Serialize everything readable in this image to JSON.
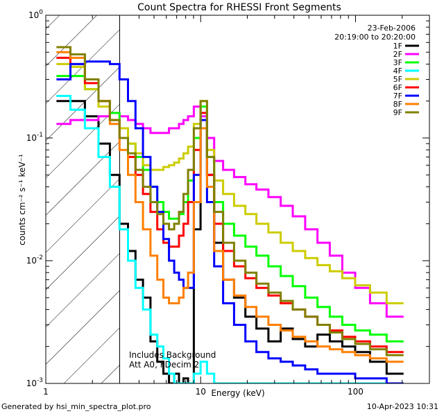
{
  "chart_data": {
    "type": "line",
    "title": "Count Spectra for RHESSI Front Segments",
    "xlabel": "Energy (keV)",
    "ylabel": "counts cm⁻² s⁻¹ keV⁻¹",
    "xscale": "log",
    "yscale": "log",
    "xlim": [
      1,
      300
    ],
    "ylim": [
      0.001,
      1
    ],
    "x_ticks": [
      {
        "value": 1,
        "label": "1"
      },
      {
        "value": 10,
        "label": "10"
      },
      {
        "value": 100,
        "label": "100"
      }
    ],
    "y_ticks": [
      {
        "value": 0.001,
        "base": "10",
        "exp": "-3"
      },
      {
        "value": 0.01,
        "base": "10",
        "exp": "-2"
      },
      {
        "value": 0.1,
        "base": "10",
        "exp": "-1"
      },
      {
        "value": 1,
        "base": "10",
        "exp": "0"
      }
    ],
    "legend": {
      "position": "top-right",
      "date": "23-Feb-2006",
      "time_range": "20:19:00 to 20:20:00"
    },
    "annotations": [
      "Includes Background",
      "Att A0, FDecim 2"
    ],
    "shaded_region": {
      "x_min": 1,
      "x_max": 3,
      "style": "diagonal hatch"
    },
    "series": [
      {
        "name": "1F",
        "color": "#000000",
        "values": [
          0.2,
          0.2,
          0.15,
          0.09,
          0.05,
          0.02,
          0.012,
          0.007,
          0.005,
          0.0022,
          0.0015,
          0.0012,
          0.001,
          0.0012,
          0.001,
          0.0011,
          0.001,
          0.018,
          0.12,
          0.05,
          0.014,
          0.007,
          0.005,
          0.0035,
          0.0028,
          0.0022,
          0.0028,
          0.0023,
          0.002,
          0.0025,
          0.0022,
          0.002,
          0.0018,
          0.0015,
          0.0012
        ]
      },
      {
        "name": "2F",
        "color": "#ff00ff",
        "values": [
          0.13,
          0.14,
          0.14,
          0.15,
          0.16,
          0.15,
          0.14,
          0.13,
          0.12,
          0.11,
          0.11,
          0.11,
          0.12,
          0.12,
          0.13,
          0.14,
          0.15,
          0.18,
          0.15,
          0.1,
          0.065,
          0.055,
          0.048,
          0.042,
          0.038,
          0.033,
          0.028,
          0.023,
          0.018,
          0.014,
          0.011,
          0.008,
          0.006,
          0.0045,
          0.0035
        ]
      },
      {
        "name": "3F",
        "color": "#00ff00",
        "values": [
          0.32,
          0.32,
          0.25,
          0.2,
          0.16,
          0.12,
          0.09,
          0.07,
          0.055,
          0.04,
          0.03,
          0.025,
          0.022,
          0.022,
          0.024,
          0.03,
          0.045,
          0.1,
          0.18,
          0.07,
          0.03,
          0.02,
          0.016,
          0.013,
          0.011,
          0.009,
          0.0075,
          0.0062,
          0.005,
          0.0042,
          0.0035,
          0.003,
          0.0027,
          0.0025,
          0.0022
        ]
      },
      {
        "name": "4F",
        "color": "#00ffff",
        "values": [
          0.22,
          0.17,
          0.12,
          0.07,
          0.04,
          0.018,
          0.01,
          0.006,
          0.004,
          0.0025,
          0.002,
          0.0016,
          0.0012,
          0.001,
          0.001,
          0.001,
          0.001,
          0.0012,
          0.0015,
          0.0012,
          0.001,
          0.001,
          0.001,
          0.001,
          0.001,
          0.001,
          0.001,
          0.001,
          0.001,
          0.001,
          0.001,
          0.001,
          0.001,
          0.001,
          0.001
        ]
      },
      {
        "name": "5F",
        "color": "#cccc00",
        "values": [
          0.4,
          0.38,
          0.25,
          0.18,
          0.14,
          0.12,
          0.09,
          0.075,
          0.06,
          0.055,
          0.055,
          0.058,
          0.06,
          0.063,
          0.068,
          0.075,
          0.085,
          0.13,
          0.2,
          0.08,
          0.045,
          0.035,
          0.028,
          0.024,
          0.02,
          0.017,
          0.014,
          0.012,
          0.0105,
          0.0092,
          0.0082,
          0.0072,
          0.0063,
          0.0055,
          0.0045
        ]
      },
      {
        "name": "6F",
        "color": "#ff0000",
        "values": [
          0.45,
          0.4,
          0.28,
          0.2,
          0.14,
          0.1,
          0.07,
          0.05,
          0.035,
          0.025,
          0.018,
          0.014,
          0.013,
          0.013,
          0.016,
          0.02,
          0.03,
          0.08,
          0.16,
          0.05,
          0.02,
          0.012,
          0.009,
          0.0072,
          0.006,
          0.0052,
          0.0045,
          0.004,
          0.0035,
          0.003,
          0.0027,
          0.0024,
          0.0022,
          0.002,
          0.0018
        ]
      },
      {
        "name": "7F",
        "color": "#0000ff",
        "values": [
          0.3,
          0.4,
          0.42,
          0.42,
          0.4,
          0.3,
          0.2,
          0.12,
          0.07,
          0.04,
          0.025,
          0.015,
          0.01,
          0.008,
          0.007,
          0.006,
          0.006,
          0.05,
          0.14,
          0.03,
          0.009,
          0.0045,
          0.003,
          0.0022,
          0.0018,
          0.0016,
          0.0015,
          0.0014,
          0.0013,
          0.0012,
          0.0012,
          0.0012,
          0.0011,
          0.0011,
          0.001
        ]
      },
      {
        "name": "8F",
        "color": "#ff7f00",
        "values": [
          0.5,
          0.45,
          0.3,
          0.2,
          0.13,
          0.08,
          0.05,
          0.03,
          0.018,
          0.011,
          0.007,
          0.005,
          0.0045,
          0.0045,
          0.005,
          0.006,
          0.008,
          0.03,
          0.12,
          0.04,
          0.012,
          0.007,
          0.0052,
          0.0042,
          0.0035,
          0.003,
          0.0027,
          0.0024,
          0.0022,
          0.002,
          0.0019,
          0.0018,
          0.0017,
          0.0016,
          0.0015
        ]
      },
      {
        "name": "9F",
        "color": "#808000",
        "values": [
          0.55,
          0.48,
          0.3,
          0.2,
          0.14,
          0.1,
          0.075,
          0.055,
          0.04,
          0.03,
          0.024,
          0.02,
          0.018,
          0.02,
          0.025,
          0.035,
          0.055,
          0.12,
          0.2,
          0.07,
          0.025,
          0.014,
          0.01,
          0.008,
          0.0065,
          0.0055,
          0.0047,
          0.004,
          0.0035,
          0.003,
          0.0026,
          0.0023,
          0.0021,
          0.0019,
          0.0017
        ]
      }
    ],
    "energy_keV": [
      1.3,
      1.6,
      2.0,
      2.4,
      2.8,
      3.2,
      3.6,
      4.0,
      4.5,
      5.0,
      5.5,
      6.0,
      6.5,
      7.0,
      7.5,
      8.0,
      8.6,
      9.5,
      10.5,
      11.5,
      13,
      15,
      18,
      21,
      25,
      30,
      36,
      43,
      52,
      62,
      75,
      90,
      110,
      140,
      180
    ]
  },
  "footer": {
    "left": "Generated by hsi_min_spectra_plot.pro",
    "right": "10-Apr-2023 10:31"
  }
}
